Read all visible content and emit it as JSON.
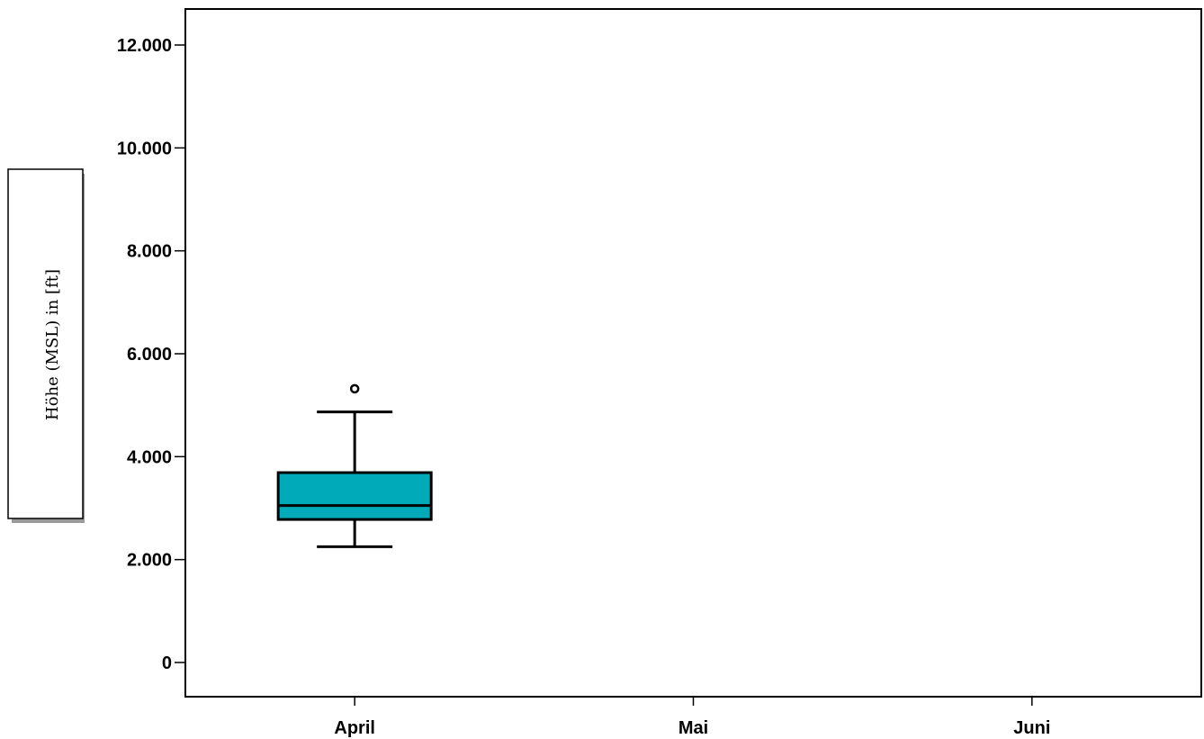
{
  "chart_data": {
    "type": "box",
    "title": "",
    "xlabel": "",
    "ylabel": "Höhe (MSL) in [ft]",
    "categories": [
      "April",
      "Mai",
      "Juni"
    ],
    "ylim": [
      -650,
      12650
    ],
    "y_ticks": [
      0,
      2000,
      4000,
      6000,
      8000,
      10000,
      12000
    ],
    "y_tick_labels": [
      "0",
      "2.000",
      "4.000",
      "6.000",
      "8.000",
      "10.000",
      "12.000"
    ],
    "grid": false,
    "legend": "none",
    "boxes": [
      {
        "category": "April",
        "whisker_low": 2250,
        "q1": 2780,
        "median": 3050,
        "q3": 3690,
        "whisker_high": 4870,
        "outliers": [
          5320
        ]
      }
    ],
    "colors": {
      "box_fill": "#00aab8",
      "line": "#000000",
      "background": "#ffffff"
    }
  }
}
